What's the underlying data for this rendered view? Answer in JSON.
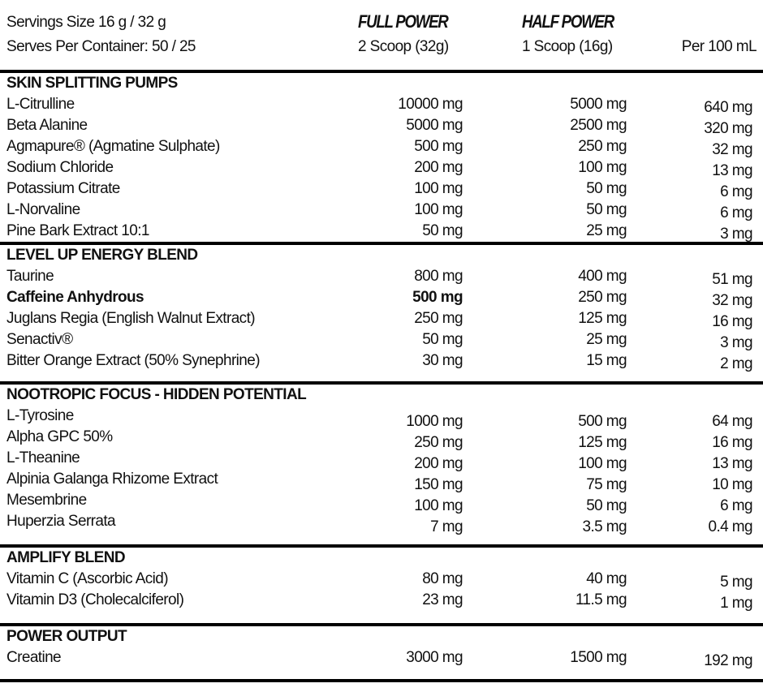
{
  "header": {
    "serving_size": "Servings Size 16 g / 32 g",
    "serves_per_container": "Serves Per Container: 50 / 25",
    "full_power": "FULL POWER",
    "full_power_serving": "2 Scoop (32g)",
    "half_power": "HALF POWER",
    "half_power_serving": "1 Scoop (16g)",
    "per_100ml": "Per 100 mL"
  },
  "sections": [
    {
      "title": "SKIN SPLITTING PUMPS",
      "rows": [
        {
          "name": "L-Citrulline",
          "full": "10000 mg",
          "half": "5000 mg",
          "per100": "640 mg"
        },
        {
          "name": "Beta Alanine",
          "full": "5000 mg",
          "half": "2500 mg",
          "per100": "320 mg"
        },
        {
          "name": "Agmapure® (Agmatine Sulphate)",
          "full": "500 mg",
          "half": "250 mg",
          "per100": "32 mg"
        },
        {
          "name": "Sodium Chloride",
          "full": "200 mg",
          "half": "100 mg",
          "per100": "13 mg"
        },
        {
          "name": "Potassium Citrate",
          "full": "100 mg",
          "half": "50 mg",
          "per100": "6 mg"
        },
        {
          "name": "L-Norvaline",
          "full": "100 mg",
          "half": "50 mg",
          "per100": "6 mg"
        },
        {
          "name": "Pine Bark Extract 10:1",
          "full": "50 mg",
          "half": "25 mg",
          "per100": "3 mg"
        }
      ]
    },
    {
      "title": "LEVEL UP ENERGY BLEND",
      "rows": [
        {
          "name": "Taurine",
          "full": "800 mg",
          "half": "400 mg",
          "per100": "51 mg"
        },
        {
          "name": "Caffeine Anhydrous",
          "full": "500 mg",
          "half": "250 mg",
          "per100": "32 mg",
          "bold": true
        },
        {
          "name": "Juglans Regia (English Walnut Extract)",
          "full": "250 mg",
          "half": "125 mg",
          "per100": "16 mg"
        },
        {
          "name": "Senactiv®",
          "full": "50 mg",
          "half": "25 mg",
          "per100": "3 mg"
        },
        {
          "name": "Bitter Orange Extract (50% Synephrine)",
          "full": "30 mg",
          "half": "15 mg",
          "per100": "2 mg"
        }
      ]
    },
    {
      "title": "NOOTROPIC FOCUS - HIDDEN POTENTIAL",
      "rows": [
        {
          "name": "L-Tyrosine",
          "full": "1000 mg",
          "half": "500 mg",
          "per100": "64 mg"
        },
        {
          "name": "Alpha GPC 50%",
          "full": "250 mg",
          "half": "125 mg",
          "per100": "16 mg"
        },
        {
          "name": "L-Theanine",
          "full": "200 mg",
          "half": "100 mg",
          "per100": "13 mg"
        },
        {
          "name": "Alpinia Galanga Rhizome Extract",
          "full": "150 mg",
          "half": "75 mg",
          "per100": "10 mg"
        },
        {
          "name": "Mesembrine",
          "full": "100 mg",
          "half": "50 mg",
          "per100": "6 mg"
        },
        {
          "name": "Huperzia Serrata",
          "full": "7 mg",
          "half": "3.5 mg",
          "per100": "0.4 mg"
        }
      ]
    },
    {
      "title": "AMPLIFY BLEND",
      "rows": [
        {
          "name": "Vitamin C (Ascorbic Acid)",
          "full": "80 mg",
          "half": "40 mg",
          "per100": "5 mg"
        },
        {
          "name": "Vitamin D3 (Cholecalciferol)",
          "full": "23 mg",
          "half": "11.5 mg",
          "per100": "1 mg"
        }
      ]
    },
    {
      "title": "POWER OUTPUT",
      "rows": [
        {
          "name": "Creatine",
          "full": "3000 mg",
          "half": "1500 mg",
          "per100": "192 mg"
        }
      ]
    }
  ]
}
